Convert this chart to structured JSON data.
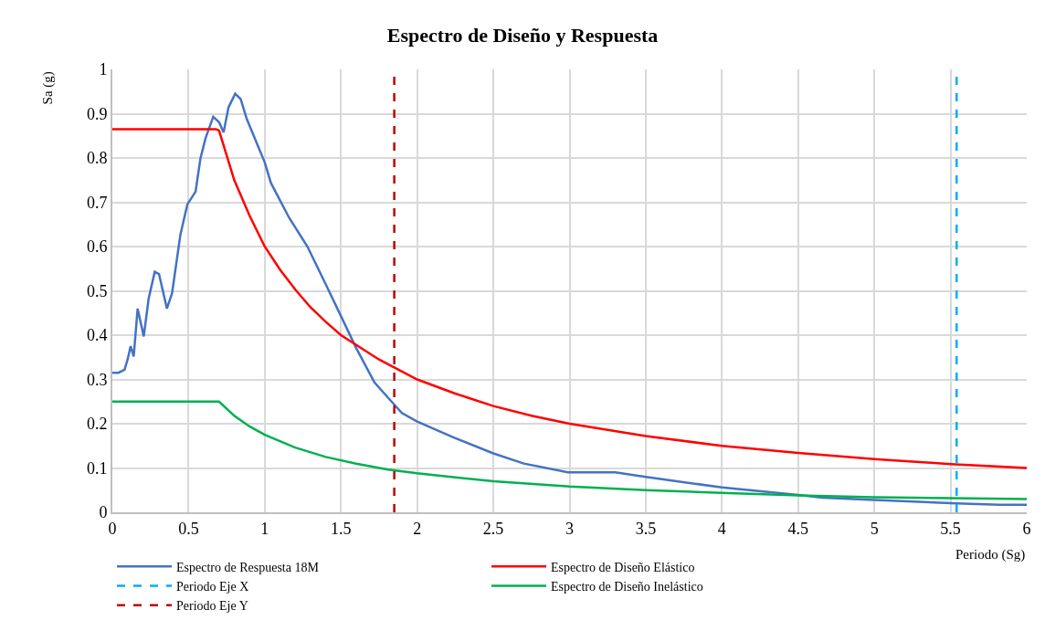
{
  "chart_data": {
    "type": "line",
    "title": "Espectro de Diseño y Respuesta",
    "xlabel": "Periodo (Sg)",
    "ylabel": "Sa (g)",
    "xlim": [
      0,
      6
    ],
    "xticks": [
      0,
      0.5,
      1,
      1.5,
      2,
      2.5,
      3,
      3.5,
      4,
      4.5,
      5,
      5.5,
      6
    ],
    "ylim": [
      0,
      1
    ],
    "yticks": [
      0,
      0.1,
      0.2,
      0.3,
      0.4,
      0.5,
      0.6,
      0.7,
      0.8,
      0.9,
      1
    ],
    "grid": true,
    "legend": "bottom",
    "marker": "none",
    "line_style": "solid",
    "series": [
      {
        "name": "Espectro de Respuesta 18M",
        "color": "#4472c4",
        "x": [
          0,
          0.04,
          0.08,
          0.1,
          0.12,
          0.14,
          0.166,
          0.206,
          0.238,
          0.278,
          0.306,
          0.358,
          0.392,
          0.446,
          0.492,
          0.546,
          0.578,
          0.612,
          0.662,
          0.7,
          0.73,
          0.762,
          0.806,
          0.842,
          0.882,
          1.0,
          1.04,
          1.16,
          1.28,
          1.4,
          1.5,
          1.6,
          1.72,
          1.84,
          1.9,
          2.0,
          2.24,
          2.5,
          2.7,
          2.99,
          3.3,
          3.5,
          4.0,
          4.5,
          4.66,
          5.0,
          5.54,
          5.82,
          6.0
        ],
        "values": [
          0.315,
          0.315,
          0.322,
          0.345,
          0.375,
          0.352,
          0.46,
          0.397,
          0.482,
          0.543,
          0.538,
          0.46,
          0.495,
          0.626,
          0.695,
          0.724,
          0.799,
          0.845,
          0.893,
          0.881,
          0.858,
          0.914,
          0.945,
          0.933,
          0.888,
          0.79,
          0.744,
          0.665,
          0.6,
          0.515,
          0.443,
          0.371,
          0.293,
          0.247,
          0.224,
          0.205,
          0.169,
          0.133,
          0.11,
          0.09,
          0.09,
          0.08,
          0.056,
          0.039,
          0.033,
          0.028,
          0.02,
          0.017,
          0.017
        ]
      },
      {
        "name": "Espectro de Diseño Elástico",
        "color": "#ff0000",
        "x": [
          0,
          0.68,
          0.7,
          0.8,
          0.9,
          1,
          1.1,
          1.2,
          1.3,
          1.4,
          1.5,
          1.75,
          2,
          2.25,
          2.5,
          2.75,
          3,
          3.5,
          4,
          4.5,
          5,
          5.5,
          6
        ],
        "values": [
          0.865,
          0.865,
          0.862,
          0.75,
          0.67,
          0.6,
          0.548,
          0.503,
          0.463,
          0.43,
          0.4,
          0.345,
          0.3,
          0.268,
          0.24,
          0.218,
          0.2,
          0.172,
          0.15,
          0.134,
          0.12,
          0.109,
          0.1
        ]
      },
      {
        "name": "Periodo Eje X",
        "color": "#00b0f0",
        "line_style": "dashed",
        "x": [
          5.54,
          5.54
        ],
        "values": [
          0,
          1
        ]
      },
      {
        "name": "Espectro de Diseño Inelástico",
        "color": "#00b050",
        "x": [
          0,
          0.7,
          0.8,
          0.9,
          1,
          1.2,
          1.4,
          1.6,
          1.8,
          2,
          2.5,
          3,
          3.5,
          4,
          4.5,
          5,
          5.5,
          6
        ],
        "values": [
          0.25,
          0.25,
          0.218,
          0.194,
          0.175,
          0.146,
          0.125,
          0.11,
          0.097,
          0.088,
          0.07,
          0.058,
          0.05,
          0.044,
          0.038,
          0.034,
          0.032,
          0.03
        ]
      },
      {
        "name": "Periodo Eje Y",
        "color": "#c00000",
        "line_style": "dashed",
        "x": [
          1.85,
          1.85
        ],
        "values": [
          0,
          1
        ]
      }
    ]
  }
}
